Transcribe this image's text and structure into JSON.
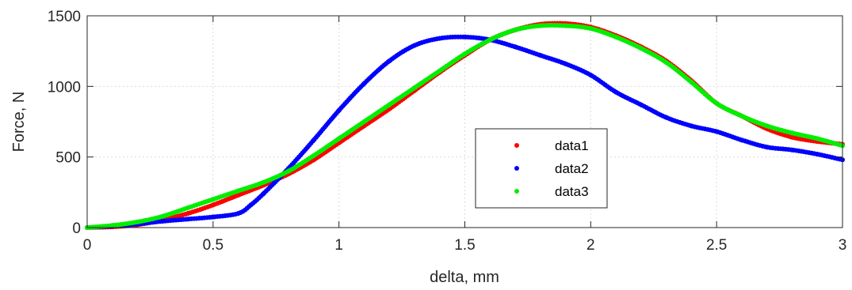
{
  "chart_data": {
    "type": "scatter",
    "title": "",
    "xlabel": "delta, mm",
    "ylabel": "Force, N",
    "xlim": [
      0,
      3
    ],
    "ylim": [
      0,
      1500
    ],
    "xticks": [
      0,
      0.5,
      1,
      1.5,
      2,
      2.5,
      3
    ],
    "xtick_labels": [
      "0",
      "0.5",
      "1",
      "1.5",
      "2",
      "2.5",
      "3"
    ],
    "yticks": [
      0,
      500,
      1000,
      1500
    ],
    "ytick_labels": [
      "0",
      "500",
      "1000",
      "1500"
    ],
    "grid": true,
    "legend_position": "center-right",
    "series": [
      {
        "name": "data1",
        "color": "#ff0000",
        "x": [
          0,
          0.1,
          0.2,
          0.3,
          0.4,
          0.5,
          0.6,
          0.7,
          0.8,
          0.9,
          1.0,
          1.1,
          1.2,
          1.3,
          1.4,
          1.5,
          1.6,
          1.7,
          1.8,
          1.9,
          2.0,
          2.1,
          2.2,
          2.3,
          2.4,
          2.5,
          2.6,
          2.7,
          2.8,
          2.9,
          3.0
        ],
        "y": [
          0,
          5,
          20,
          55,
          100,
          160,
          230,
          300,
          380,
          480,
          600,
          720,
          840,
          970,
          1100,
          1220,
          1330,
          1400,
          1440,
          1445,
          1420,
          1360,
          1280,
          1180,
          1040,
          880,
          790,
          700,
          640,
          610,
          590
        ]
      },
      {
        "name": "data2",
        "color": "#0000ff",
        "x": [
          0,
          0.1,
          0.2,
          0.3,
          0.4,
          0.5,
          0.6,
          0.65,
          0.7,
          0.8,
          0.9,
          1.0,
          1.1,
          1.2,
          1.3,
          1.4,
          1.5,
          1.6,
          1.7,
          1.8,
          1.9,
          2.0,
          2.1,
          2.2,
          2.3,
          2.4,
          2.5,
          2.6,
          2.7,
          2.8,
          2.9,
          3.0
        ],
        "y": [
          0,
          10,
          25,
          45,
          60,
          75,
          100,
          160,
          240,
          420,
          620,
          830,
          1020,
          1180,
          1290,
          1340,
          1350,
          1330,
          1280,
          1220,
          1160,
          1080,
          960,
          870,
          780,
          720,
          680,
          620,
          570,
          550,
          520,
          480
        ]
      },
      {
        "name": "data3",
        "color": "#00ee00",
        "x": [
          0,
          0.1,
          0.2,
          0.3,
          0.4,
          0.5,
          0.6,
          0.7,
          0.8,
          0.9,
          1.0,
          1.1,
          1.2,
          1.3,
          1.4,
          1.5,
          1.6,
          1.7,
          1.8,
          1.9,
          2.0,
          2.1,
          2.2,
          2.3,
          2.4,
          2.5,
          2.6,
          2.7,
          2.8,
          2.9,
          3.0
        ],
        "y": [
          0,
          15,
          40,
          80,
          140,
          200,
          260,
          320,
          400,
          510,
          630,
          750,
          870,
          990,
          1110,
          1230,
          1330,
          1400,
          1430,
          1430,
          1410,
          1350,
          1270,
          1170,
          1030,
          880,
          790,
          720,
          670,
          630,
          580
        ]
      }
    ]
  }
}
